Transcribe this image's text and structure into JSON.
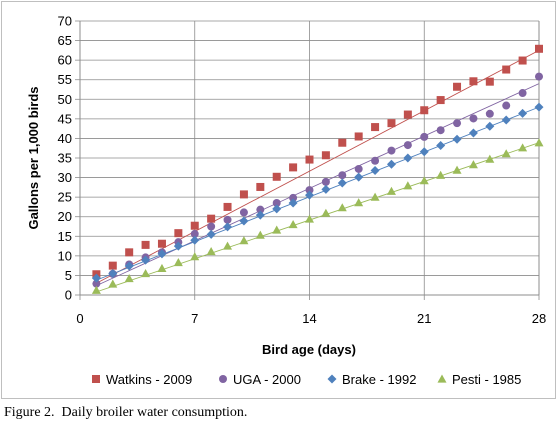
{
  "caption": "Figure 2.  Daily broiler water consumption.",
  "chart_data": {
    "type": "scatter",
    "title": "",
    "xlabel": "Bird age (days)",
    "ylabel": "Gallons per 1,000 birds",
    "xlim": [
      0,
      28
    ],
    "ylim": [
      0,
      70
    ],
    "xticks": [
      0,
      7,
      14,
      21,
      28
    ],
    "yticks": [
      0,
      5,
      10,
      15,
      20,
      25,
      30,
      35,
      40,
      45,
      50,
      55,
      60,
      65,
      70
    ],
    "grid": "horizontal gridlines and vertical gridlines at 7, 14, 21",
    "legend": "bottom",
    "series": [
      {
        "name": "Watkins - 2009",
        "marker": "square",
        "color": "#c0504d",
        "x": [
          1,
          2,
          3,
          4,
          5,
          6,
          7,
          8,
          9,
          10,
          11,
          12,
          13,
          14,
          15,
          16,
          17,
          18,
          19,
          20,
          21,
          22,
          23,
          24,
          25,
          26,
          27,
          28
        ],
        "y": [
          5.3,
          7.5,
          10.9,
          12.8,
          13.1,
          15.8,
          17.7,
          19.5,
          22.5,
          25.7,
          27.6,
          30.2,
          32.6,
          34.6,
          35.7,
          38.9,
          40.5,
          42.9,
          43.9,
          46.1,
          47.2,
          49.8,
          53.2,
          54.6,
          54.5,
          57.6,
          59.9,
          62.9
        ],
        "trendline": [
          3.0,
          62.5
        ]
      },
      {
        "name": "UGA - 2000",
        "marker": "circle",
        "color": "#8064a2",
        "x": [
          1,
          2,
          3,
          4,
          5,
          6,
          7,
          8,
          9,
          10,
          11,
          12,
          13,
          14,
          15,
          16,
          17,
          18,
          19,
          20,
          21,
          22,
          23,
          24,
          25,
          26,
          27,
          28
        ],
        "y": [
          2.9,
          5.4,
          7.8,
          9.6,
          10.9,
          13.5,
          15.6,
          17.5,
          19.2,
          21.1,
          21.8,
          23.5,
          24.8,
          26.8,
          28.9,
          30.6,
          32.2,
          34.3,
          36.9,
          38.3,
          40.4,
          42.1,
          43.9,
          45.1,
          46.3,
          48.4,
          51.6,
          55.8
        ],
        "trendline": [
          2.4,
          54.0
        ]
      },
      {
        "name": "Brake - 1992",
        "marker": "diamond",
        "color": "#4f81bd",
        "x": [
          1,
          2,
          3,
          4,
          5,
          6,
          7,
          8,
          9,
          10,
          11,
          12,
          13,
          14,
          15,
          16,
          17,
          18,
          19,
          20,
          21,
          22,
          23,
          24,
          25,
          26,
          27,
          28
        ],
        "y": [
          4.3,
          5.5,
          7.4,
          8.9,
          10.5,
          12.5,
          14.0,
          15.5,
          17.4,
          18.9,
          20.4,
          22.0,
          23.5,
          25.5,
          27.0,
          28.6,
          30.1,
          31.8,
          33.4,
          35.0,
          36.6,
          38.2,
          39.8,
          41.4,
          43.1,
          44.7,
          46.4,
          48.0
        ],
        "trendline": [
          3.8,
          48.0
        ]
      },
      {
        "name": "Pesti - 1985",
        "marker": "triangle",
        "color": "#9bbb59",
        "x": [
          1,
          2,
          3,
          4,
          5,
          6,
          7,
          8,
          9,
          10,
          11,
          12,
          13,
          14,
          15,
          16,
          17,
          18,
          19,
          20,
          21,
          22,
          23,
          24,
          25,
          26,
          27,
          28
        ],
        "y": [
          1.2,
          2.8,
          4.2,
          5.5,
          6.8,
          8.3,
          9.8,
          11.1,
          12.5,
          13.9,
          15.3,
          16.6,
          18.0,
          19.4,
          20.9,
          22.3,
          23.6,
          25.0,
          26.5,
          27.9,
          29.2,
          30.6,
          31.9,
          33.3,
          34.7,
          36.1,
          37.6,
          38.9
        ],
        "trendline": [
          0.8,
          38.9
        ]
      }
    ]
  }
}
